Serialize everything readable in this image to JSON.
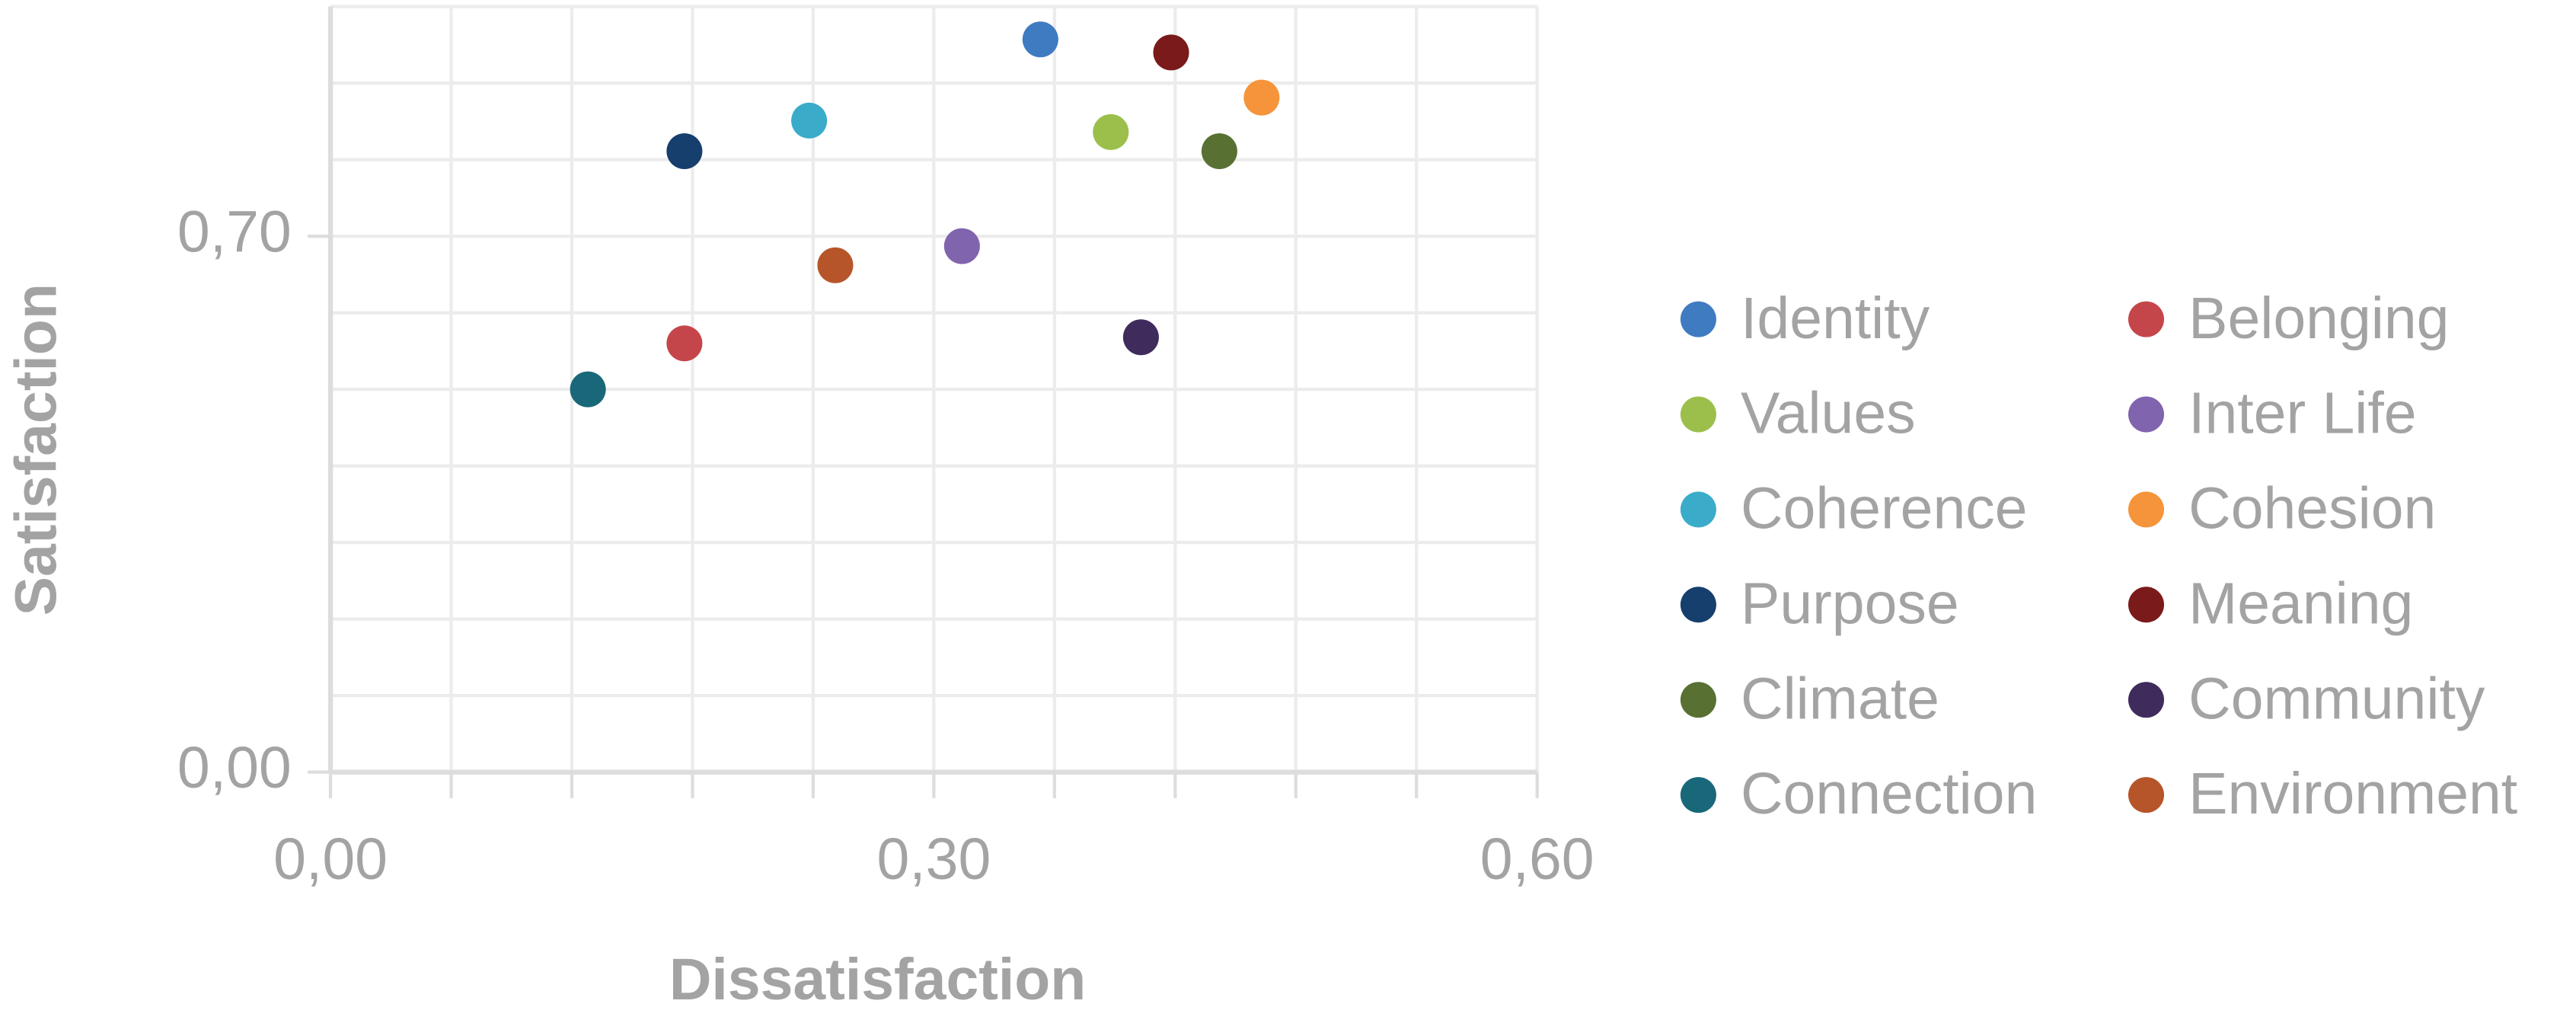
{
  "chart_data": {
    "type": "scatter",
    "x_label": "Dissatisfaction",
    "y_label": "Satisfaction",
    "xlim": [
      0,
      0.6
    ],
    "ylim": [
      0,
      1.0
    ],
    "xticks": [
      {
        "value": 0,
        "label": "0,00"
      },
      {
        "value": 0.3,
        "label": "0,30"
      },
      {
        "value": 0.6,
        "label": "0,60"
      }
    ],
    "yticks": [
      {
        "value": 0,
        "label": "0,00"
      },
      {
        "value": 0.7,
        "label": "0,70"
      }
    ],
    "x_minor_ticks": [
      0.06,
      0.12,
      0.18,
      0.24,
      0.36,
      0.42,
      0.48,
      0.54
    ],
    "y_minor_ticks": [
      0.1,
      0.2,
      0.3,
      0.4,
      0.5,
      0.6,
      0.8,
      0.9,
      1.0
    ],
    "grid": true,
    "legend": "right",
    "series": [
      {
        "name": "Identity",
        "color": "#3f7bc1",
        "x": [
          0.353
        ],
        "values": [
          0.957
        ]
      },
      {
        "name": "Belonging",
        "color": "#c5464a",
        "x": [
          0.176
        ],
        "values": [
          0.56
        ]
      },
      {
        "name": "Values",
        "color": "#9cbf4c",
        "x": [
          0.388
        ],
        "values": [
          0.836
        ]
      },
      {
        "name": "Inter Life",
        "color": "#8064ae",
        "x": [
          0.314
        ],
        "values": [
          0.687
        ]
      },
      {
        "name": "Coherence",
        "color": "#3aacc9",
        "x": [
          0.238
        ],
        "values": [
          0.851
        ]
      },
      {
        "name": "Cohesion",
        "color": "#f5943a",
        "x": [
          0.463
        ],
        "values": [
          0.881
        ]
      },
      {
        "name": "Purpose",
        "color": "#163f6e",
        "x": [
          0.176
        ],
        "values": [
          0.811
        ]
      },
      {
        "name": "Meaning",
        "color": "#7a1a1a",
        "x": [
          0.418
        ],
        "values": [
          0.94
        ]
      },
      {
        "name": "Climate",
        "color": "#587133",
        "x": [
          0.442
        ],
        "values": [
          0.811
        ]
      },
      {
        "name": "Community",
        "color": "#3f2b5c",
        "x": [
          0.403
        ],
        "values": [
          0.568
        ]
      },
      {
        "name": "Connection",
        "color": "#18687a",
        "x": [
          0.128
        ],
        "values": [
          0.5
        ]
      },
      {
        "name": "Environment",
        "color": "#b6552a",
        "x": [
          0.251
        ],
        "values": [
          0.662
        ]
      }
    ]
  }
}
